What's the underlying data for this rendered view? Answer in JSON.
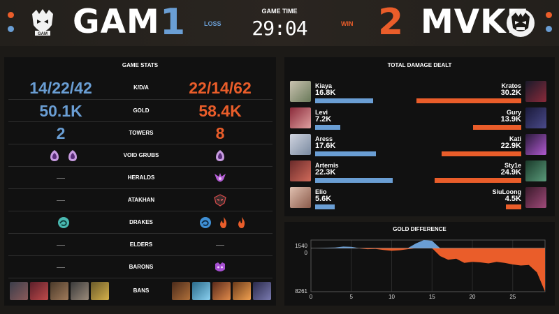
{
  "header": {
    "left_team": "GAM",
    "left_score": "1",
    "left_result": "LOSS",
    "right_team": "MVKE",
    "right_score": "2",
    "right_result": "WIN",
    "game_time_label": "GAME TIME",
    "game_time": "29:04",
    "left_logo_text": "GAM"
  },
  "colors": {
    "blue": "#6a9ed4",
    "orange": "#ea5d2a",
    "panel": "#111111",
    "background": "#1c1a17"
  },
  "game_stats": {
    "title": "GAME STATS",
    "rows": [
      {
        "label": "K/D/A",
        "left": "14/22/42",
        "right": "22/14/62"
      },
      {
        "label": "GOLD",
        "left": "50.1K",
        "right": "58.4K"
      },
      {
        "label": "TOWERS",
        "left": "2",
        "right": "8"
      },
      {
        "label": "VOID GRUBS",
        "left_icons": [
          "void-grub-icon",
          "void-grub-icon"
        ],
        "right_icons": [
          "void-grub-icon"
        ]
      },
      {
        "label": "HERALDS",
        "left_icons": [],
        "right_icons": [
          "herald-icon"
        ]
      },
      {
        "label": "ATAKHAN",
        "left_icons": [],
        "right_icons": [
          "atakhan-icon"
        ]
      },
      {
        "label": "DRAKES",
        "left_icons": [
          "ocean-drake-icon"
        ],
        "right_icons": [
          "ocean-drake-icon",
          "infernal-drake-icon",
          "infernal-drake-icon"
        ]
      },
      {
        "label": "ELDERS",
        "left_icons": [],
        "right_icons": []
      },
      {
        "label": "BARONS",
        "left_icons": [],
        "right_icons": [
          "baron-icon"
        ]
      },
      {
        "label": "BANS",
        "left_bans": [
          "ban-champion-1",
          "ban-champion-2",
          "ban-champion-3",
          "ban-champion-4",
          "ban-champion-5"
        ],
        "right_bans": [
          "ban-champion-6",
          "ban-champion-7",
          "ban-champion-8",
          "ban-champion-9",
          "ban-champion-10"
        ]
      }
    ]
  },
  "damage": {
    "title": "TOTAL DAMAGE DEALT",
    "players": [
      {
        "left_name": "Kiaya",
        "left_dmg": "16.8K",
        "left_value": 16.8,
        "right_name": "Kratos",
        "right_dmg": "30.2K",
        "right_value": 30.2
      },
      {
        "left_name": "Levi",
        "left_dmg": "7.2K",
        "left_value": 7.2,
        "right_name": "Gury",
        "right_dmg": "13.9K",
        "right_value": 13.9
      },
      {
        "left_name": "Aress",
        "left_dmg": "17.6K",
        "left_value": 17.6,
        "right_name": "Kati",
        "right_dmg": "22.9K",
        "right_value": 22.9
      },
      {
        "left_name": "Artemis",
        "left_dmg": "22.3K",
        "left_value": 22.3,
        "right_name": "Sty1e",
        "right_dmg": "24.9K",
        "right_value": 24.9
      },
      {
        "left_name": "Elio",
        "left_dmg": "5.6K",
        "left_value": 5.6,
        "right_name": "SiuLoong",
        "right_dmg": "4.5K",
        "right_value": 4.5
      }
    ]
  },
  "gold_diff": {
    "title": "GOLD DIFFERENCE",
    "y_top": "1540",
    "y_zero": "0",
    "y_bottom": "8261",
    "x_ticks": [
      "0",
      "5",
      "10",
      "15",
      "20",
      "25"
    ]
  },
  "chart_data": {
    "type": "area",
    "title": "GOLD DIFFERENCE",
    "xlabel": "",
    "ylabel": "",
    "xlim": [
      0,
      29
    ],
    "ylim": [
      -8261,
      1540
    ],
    "x": [
      0,
      1,
      2,
      3,
      4,
      5,
      6,
      7,
      8,
      9,
      10,
      11,
      12,
      13,
      14,
      15,
      16,
      17,
      18,
      19,
      20,
      21,
      22,
      23,
      24,
      25,
      26,
      27,
      28,
      29
    ],
    "values": [
      0,
      40,
      80,
      120,
      300,
      250,
      -50,
      -200,
      -150,
      -350,
      -500,
      -400,
      -200,
      900,
      1540,
      1400,
      -1500,
      -2200,
      -2000,
      -2800,
      -2600,
      -2700,
      -2900,
      -2600,
      -2800,
      -3100,
      -3300,
      -3200,
      -4600,
      -8261
    ],
    "series_colors": {
      "positive": "#6a9ed4",
      "negative": "#ea5d2a"
    },
    "grid": true
  }
}
